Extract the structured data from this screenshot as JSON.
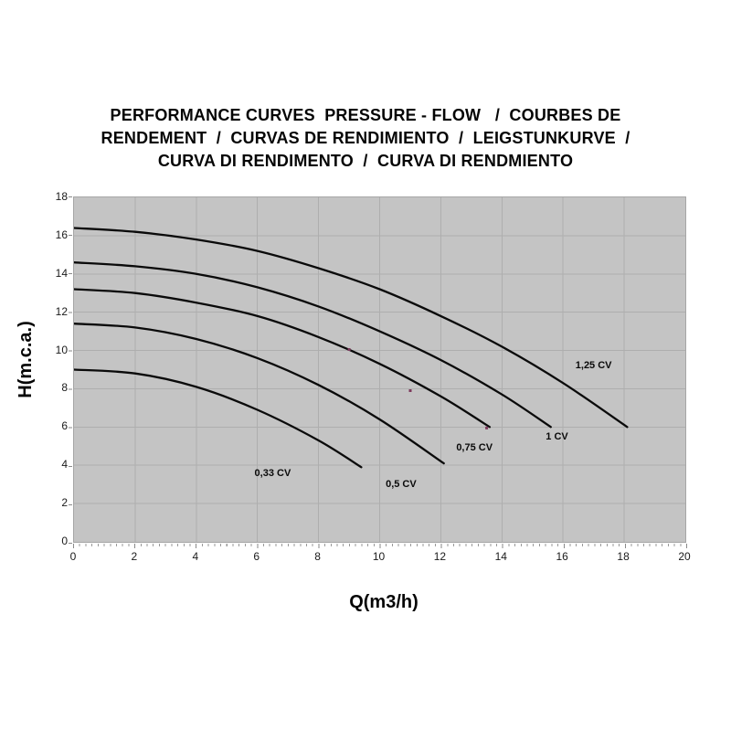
{
  "header": {
    "title_lines": [
      "PERFORMANCE CURVES  PRESSURE - FLOW   /  COURBES DE",
      "RENDEMENT  /  CURVAS DE RENDIMIENTO  /  LEIGSTUNKURVE  /",
      "CURVA DI RENDIMENTO  /  CURVA DI RENDMIENTO"
    ]
  },
  "chart_data": {
    "type": "line",
    "title": "PERFORMANCE CURVES PRESSURE - FLOW / COURBES DE RENDEMENT / CURVAS DE RENDIMIENTO / LEIGSTUNKURVE / CURVA DI RENDIMENTO / CURVA DI RENDMIENTO",
    "xlabel": "Q(m3/h)",
    "ylabel": "H(m.c.a.)",
    "xlim": [
      0,
      20
    ],
    "ylim": [
      0,
      18
    ],
    "x_ticks": [
      0,
      2,
      4,
      6,
      8,
      10,
      12,
      14,
      16,
      18,
      20
    ],
    "y_ticks": [
      0,
      2,
      4,
      6,
      8,
      10,
      12,
      14,
      16,
      18
    ],
    "grid": true,
    "grid_step": 2,
    "legend_position": "inline-labels",
    "colors": {
      "plot_bg": "#c4c4c4",
      "grid": "#aeaeae",
      "curve": "#0a0a0a",
      "marker": "#7d3a5d",
      "text": "#0a0a0a"
    },
    "series": [
      {
        "name": "0,33 CV",
        "points": [
          [
            0,
            9.0
          ],
          [
            2,
            8.8
          ],
          [
            4,
            8.1
          ],
          [
            6,
            6.9
          ],
          [
            8,
            5.3
          ],
          [
            9.4,
            3.9
          ]
        ],
        "label_pos": [
          6.5,
          3.6
        ]
      },
      {
        "name": "0,5 CV",
        "points": [
          [
            0,
            11.4
          ],
          [
            2,
            11.2
          ],
          [
            4,
            10.6
          ],
          [
            6,
            9.6
          ],
          [
            8,
            8.2
          ],
          [
            10,
            6.4
          ],
          [
            12.1,
            4.1
          ]
        ],
        "label_pos": [
          10.7,
          3.0
        ]
      },
      {
        "name": "0,75 CV",
        "points": [
          [
            0,
            13.2
          ],
          [
            2,
            13.0
          ],
          [
            4,
            12.5
          ],
          [
            6,
            11.8
          ],
          [
            8,
            10.7
          ],
          [
            10,
            9.3
          ],
          [
            12,
            7.6
          ],
          [
            13.6,
            6.0
          ]
        ],
        "label_pos": [
          13.1,
          4.9
        ]
      },
      {
        "name": "1 CV",
        "points": [
          [
            0,
            14.6
          ],
          [
            2,
            14.4
          ],
          [
            4,
            14.0
          ],
          [
            6,
            13.3
          ],
          [
            8,
            12.3
          ],
          [
            10,
            11.0
          ],
          [
            12,
            9.5
          ],
          [
            14,
            7.7
          ],
          [
            15.6,
            6.0
          ]
        ],
        "label_pos": [
          15.8,
          5.5
        ]
      },
      {
        "name": "1,25 CV",
        "points": [
          [
            0,
            16.4
          ],
          [
            2,
            16.2
          ],
          [
            4,
            15.8
          ],
          [
            6,
            15.2
          ],
          [
            8,
            14.3
          ],
          [
            10,
            13.2
          ],
          [
            12,
            11.8
          ],
          [
            14,
            10.2
          ],
          [
            16,
            8.3
          ],
          [
            18.1,
            6.0
          ]
        ],
        "label_pos": [
          17.0,
          9.2
        ]
      }
    ],
    "markers": [
      [
        9.0,
        10.05
      ],
      [
        11.0,
        7.9
      ],
      [
        13.5,
        5.95
      ]
    ]
  }
}
